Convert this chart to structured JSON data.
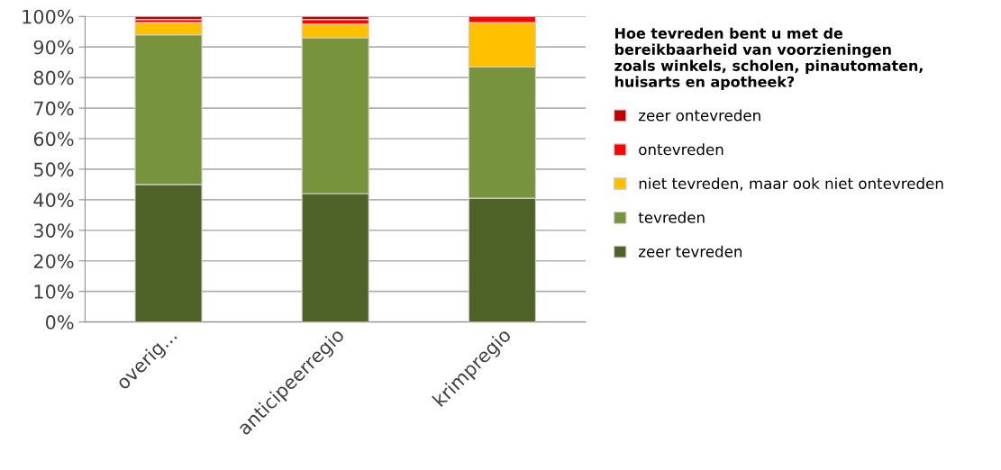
{
  "chart_data": {
    "type": "bar",
    "stacked": true,
    "categories": [
      "overig...",
      "anticipeerregio",
      "krimpregio"
    ],
    "series": [
      {
        "name": "zeer tevreden",
        "color": "#4f6228",
        "values": [
          45,
          42,
          40.5
        ]
      },
      {
        "name": "tevreden",
        "color": "#77933c",
        "values": [
          49,
          51,
          43
        ]
      },
      {
        "name": "niet tevreden, maar ook niet ontevreden",
        "color": "#ffc000",
        "values": [
          4,
          4.5,
          14.5
        ]
      },
      {
        "name": "ontevreden",
        "color": "#ff0000",
        "values": [
          1,
          1.5,
          2
        ]
      },
      {
        "name": "zeer ontevreden",
        "color": "#c00000",
        "values": [
          1,
          1,
          null
        ]
      }
    ],
    "legend_title": "Hoe tevreden bent u met de\nbereikbaarheid van voorzieningen\nzoals winkels, scholen, pinautomaten,\nhuisarts en apotheek?",
    "legend": "right",
    "grid": "y",
    "ylim": [
      0,
      100
    ],
    "yticks": [
      {
        "value": 0,
        "label": "0%"
      },
      {
        "value": 10,
        "label": "10%"
      },
      {
        "value": 20,
        "label": "20%"
      },
      {
        "value": 30,
        "label": "30%"
      },
      {
        "value": 40,
        "label": "40%"
      },
      {
        "value": 50,
        "label": "50%"
      },
      {
        "value": 60,
        "label": "60%"
      },
      {
        "value": 70,
        "label": "70%"
      },
      {
        "value": 80,
        "label": "80%"
      },
      {
        "value": 90,
        "label": "90%"
      },
      {
        "value": 100,
        "label": "100%"
      }
    ]
  }
}
